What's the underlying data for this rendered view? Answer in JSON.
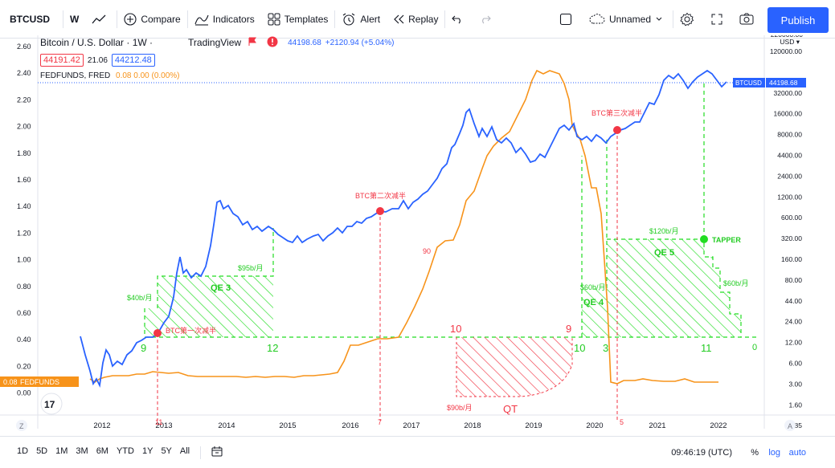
{
  "toolbar": {
    "symbol": "BTCUSD",
    "interval": "W",
    "compare": "Compare",
    "indicators": "Indicators",
    "templates": "Templates",
    "alert": "Alert",
    "replay": "Replay",
    "layout_name": "Unnamed",
    "publish": "Publish"
  },
  "legend": {
    "title": "Bitcoin / U.S. Dollar · 1W ·",
    "source": "TradingView",
    "price": "44198.68",
    "change": "+2120.94 (+5.04%)",
    "bid": "44191.42",
    "spread": "21.06",
    "ask": "44212.48",
    "indicator_name": "FEDFUNDS, FRED",
    "indicator_values": "0.08  0.00 (0.00%)"
  },
  "left_axis": {
    "labels": [
      "2.60",
      "2.40",
      "2.20",
      "2.00",
      "1.80",
      "1.60",
      "1.40",
      "1.20",
      "1.00",
      "0.80",
      "0.60",
      "0.40",
      "0.20",
      "0.00"
    ],
    "tag_value": "0.08",
    "tag_name": "FEDFUNDS"
  },
  "right_axis": {
    "header1": "220000.00",
    "header2": "USD",
    "labels": [
      "120000.00",
      "60000.00",
      "32000.00",
      "16000.00",
      "8000.00",
      "4400.00",
      "2400.00",
      "1200.00",
      "600.00",
      "320.00",
      "160.00",
      "80.00",
      "44.00",
      "24.00",
      "12.00",
      "6.00",
      "3.00",
      "1.60",
      "0.85"
    ],
    "tag_symbol": "BTCUSD",
    "tag_price": "44198.68"
  },
  "time_axis": [
    "2012",
    "2013",
    "2014",
    "2015",
    "2016",
    "2017",
    "2018",
    "2019",
    "2020",
    "2021",
    "2022"
  ],
  "annotations": {
    "halving1": "BTC第一次减半",
    "halving2": "BTC第二次减半",
    "halving3": "BTC第三次减半",
    "qe3_rate": "$40b/月",
    "qe3_rate2": "$95b/月",
    "qe3_label": "QE 3",
    "qe4_rate": "$60b/月",
    "qe4_label": "QE 4",
    "qe5_rate": "$120b/月",
    "qe5_label": "QE 5",
    "qe5_rate2": "$60b/月",
    "tapper": "TAPPER",
    "qt_rate": "$90b/月",
    "qt_label": "QT",
    "num_9a": "9",
    "num_12": "12",
    "num_10a": "10",
    "num_9b": "9",
    "num_10b": "10",
    "num_3": "3",
    "num_11b": "11",
    "num_0": "0",
    "num_90": "90",
    "tick_11": "11",
    "tick_7": "7",
    "tick_5": "5"
  },
  "bottom": {
    "ranges": [
      "1D",
      "5D",
      "1M",
      "3M",
      "6M",
      "YTD",
      "1Y",
      "5Y",
      "All"
    ],
    "clock": "09:46:19 (UTC)",
    "percent": "%",
    "log": "log",
    "auto": "auto"
  },
  "colors": {
    "btc_line": "#2962ff",
    "fed_line": "#f7931a",
    "green": "#22dd22",
    "red": "#f23645",
    "accent": "#2962ff"
  },
  "icons": [
    "chart-line-icon",
    "compare-plus-icon",
    "indicators-icon",
    "templates-icon",
    "alert-clock-icon",
    "replay-icon",
    "undo-icon",
    "redo-icon",
    "fullscreen-square-icon",
    "cloud-icon",
    "settings-gear-icon",
    "fullscreen-icon",
    "camera-icon",
    "tradingview-logo-icon",
    "calendar-range-icon"
  ]
}
